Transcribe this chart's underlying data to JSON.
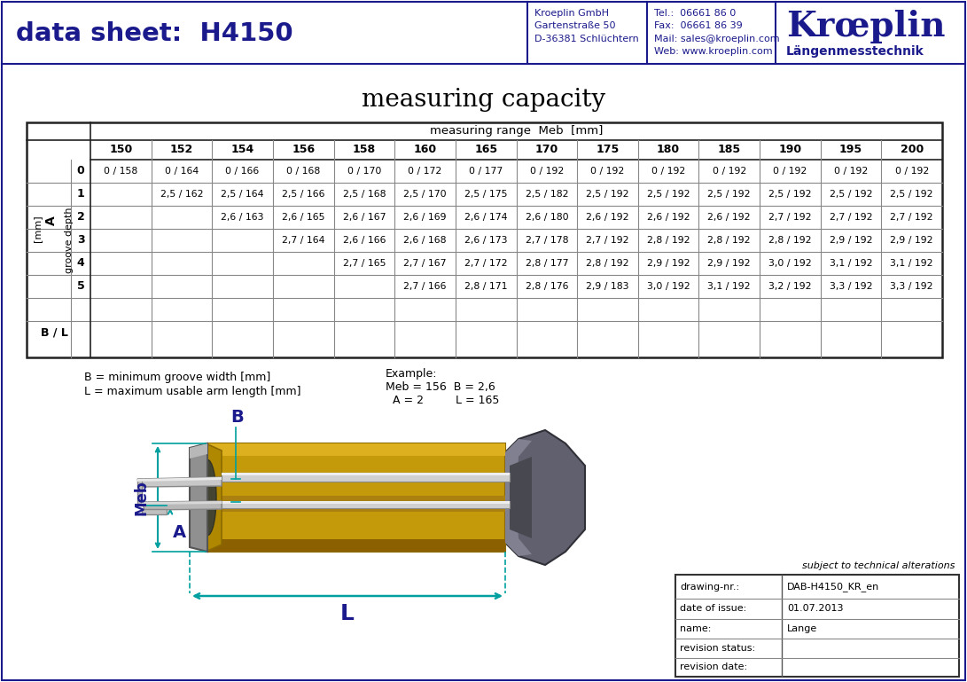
{
  "title_left": "data sheet:  H4150",
  "company_info_left": "Kroeplin GmbH\nGartenstraße 50\nD-36381 Schlüchtern",
  "company_info_right": "Tel.:  06661 86 0\nFax:  06661 86 39\nMail: sales@kroeplin.com\nWeb: www.kroeplin.com",
  "company_logo": "Krœplin",
  "company_sub": "Längenmesstechnik",
  "table_title": "measuring capacity",
  "table_header_range": "measuring range  Meb  [mm]",
  "col_headers": [
    "150",
    "152",
    "154",
    "156",
    "158",
    "160",
    "165",
    "170",
    "175",
    "180",
    "185",
    "190",
    "195",
    "200"
  ],
  "row_headers": [
    "0",
    "1",
    "2",
    "3",
    "4",
    "5",
    "",
    "B / L"
  ],
  "table_data": [
    [
      "0 / 158",
      "0 / 164",
      "0 / 166",
      "0 / 168",
      "0 / 170",
      "0 / 172",
      "0 / 177",
      "0 / 192",
      "0 / 192",
      "0 / 192",
      "0 / 192",
      "0 / 192",
      "0 / 192",
      "0 / 192"
    ],
    [
      "",
      "2,5 / 162",
      "2,5 / 164",
      "2,5 / 166",
      "2,5 / 168",
      "2,5 / 170",
      "2,5 / 175",
      "2,5 / 182",
      "2,5 / 192",
      "2,5 / 192",
      "2,5 / 192",
      "2,5 / 192",
      "2,5 / 192",
      "2,5 / 192"
    ],
    [
      "",
      "",
      "2,6 / 163",
      "2,6 / 165",
      "2,6 / 167",
      "2,6 / 169",
      "2,6 / 174",
      "2,6 / 180",
      "2,6 / 192",
      "2,6 / 192",
      "2,6 / 192",
      "2,7 / 192",
      "2,7 / 192",
      "2,7 / 192"
    ],
    [
      "",
      "",
      "",
      "2,7 / 164",
      "2,6 / 166",
      "2,6 / 168",
      "2,6 / 173",
      "2,7 / 178",
      "2,7 / 192",
      "2,8 / 192",
      "2,8 / 192",
      "2,8 / 192",
      "2,9 / 192",
      "2,9 / 192"
    ],
    [
      "",
      "",
      "",
      "",
      "2,7 / 165",
      "2,7 / 167",
      "2,7 / 172",
      "2,8 / 177",
      "2,8 / 192",
      "2,9 / 192",
      "2,9 / 192",
      "3,0 / 192",
      "3,1 / 192",
      "3,1 / 192"
    ],
    [
      "",
      "",
      "",
      "",
      "",
      "2,7 / 166",
      "2,8 / 171",
      "2,8 / 176",
      "2,9 / 183",
      "3,0 / 192",
      "3,1 / 192",
      "3,2 / 192",
      "3,3 / 192",
      "3,3 / 192"
    ],
    [
      "",
      "",
      "",
      "",
      "",
      "",
      "",
      "",
      "",
      "",
      "",
      "",
      "",
      ""
    ],
    [
      "",
      "",
      "",
      "",
      "",
      "",
      "",
      "",
      "",
      "",
      "",
      "",
      "",
      ""
    ]
  ],
  "legend_B": "B = minimum groove width [mm]",
  "legend_L": "L = maximum usable arm length [mm]",
  "example_label": "Example:",
  "example_line1": "Meb = 156  B = 2,6",
  "example_line2": "A = 2         L = 165",
  "footer_note": "subject to technical alterations",
  "drawing_nr_label": "drawing-nr.:",
  "drawing_nr_value": "DAB-H4150_KR_en",
  "date_label": "date of issue:",
  "date_value": "01.07.2013",
  "name_label": "name:",
  "name_value": "Lange",
  "revision_status_label": "revision status:",
  "revision_date_label": "revision date:",
  "dark_blue": "#1a1a8c",
  "ann_color": "#00a0a0",
  "ann_label_color": "#1a1a8c",
  "gold1": "#c8940a",
  "gold2": "#d4a820",
  "gold3": "#a07010",
  "gold_dark": "#8b6408",
  "gray1": "#888888",
  "gray2": "#555566",
  "gray_light": "#cccccc",
  "gray_mid": "#aaaaaa",
  "gray_handle": "#606070",
  "bg_color": "#ffffff"
}
